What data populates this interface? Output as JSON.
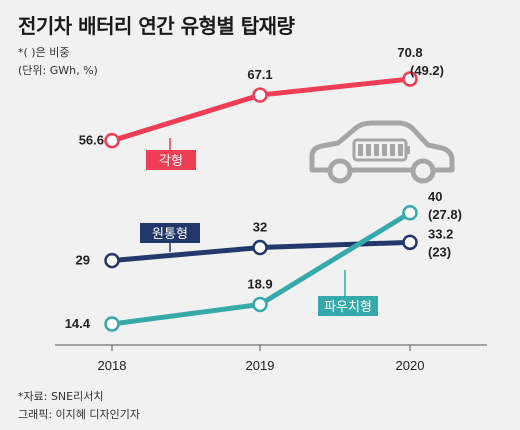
{
  "title": "전기차 배터리 연간 유형별 탑재량",
  "note": "*( )은 비중",
  "unit": "(단위: GWh, %)",
  "source": "*자료: SNE리서치",
  "credit": "그래픽: 이지혜 디자인기자",
  "colors": {
    "prismatic": "#ef3d55",
    "cylindrical": "#23386a",
    "pouch": "#36a9ab",
    "axis": "#555555",
    "car": "#a6a6a6"
  },
  "icons": [
    "electric-car-icon",
    "battery-icon"
  ],
  "chart_data": {
    "type": "line",
    "categories": [
      "2018",
      "2019",
      "2020"
    ],
    "ylim": [
      10,
      75
    ],
    "grid": false,
    "legend": "inline labels",
    "series": [
      {
        "name": "각형",
        "values": [
          56.6,
          67.1,
          70.8
        ],
        "labels": [
          "56.6",
          "67.1",
          "70.8"
        ],
        "shares": [
          "",
          "",
          "(49.2)"
        ]
      },
      {
        "name": "원통형",
        "values": [
          29,
          32,
          33.2
        ],
        "labels": [
          "29",
          "32",
          "33.2"
        ],
        "shares": [
          "",
          "",
          "(23)"
        ]
      },
      {
        "name": "파우치형",
        "values": [
          14.4,
          18.9,
          40
        ],
        "labels": [
          "14.4",
          "18.9",
          "40"
        ],
        "shares": [
          "",
          "",
          "(27.8)"
        ]
      }
    ]
  }
}
